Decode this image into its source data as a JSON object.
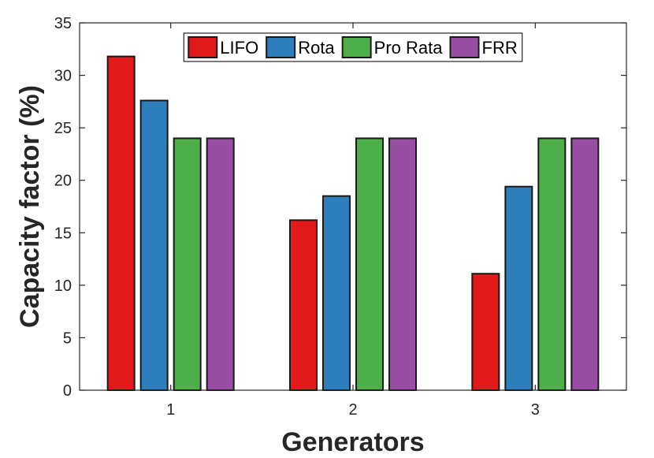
{
  "chart_data": {
    "type": "bar",
    "categories": [
      "1",
      "2",
      "3"
    ],
    "series": [
      {
        "name": "LIFO",
        "values": [
          31.8,
          16.2,
          11.1
        ],
        "color": "#e31a1c"
      },
      {
        "name": "Rota",
        "values": [
          27.6,
          18.5,
          19.4
        ],
        "color": "#2e7ebc"
      },
      {
        "name": "Pro Rata",
        "values": [
          24.0,
          24.0,
          24.0
        ],
        "color": "#4daf4a"
      },
      {
        "name": "FRR",
        "values": [
          24.0,
          24.0,
          24.0
        ],
        "color": "#984ea3"
      }
    ],
    "xlabel": "Generators",
    "ylabel": "Capacity factor (%)",
    "ylim": [
      0,
      35
    ],
    "yticks": [
      "0",
      "5",
      "10",
      "15",
      "20",
      "25",
      "30",
      "35"
    ],
    "grid": false,
    "legend_position": "top-center"
  }
}
